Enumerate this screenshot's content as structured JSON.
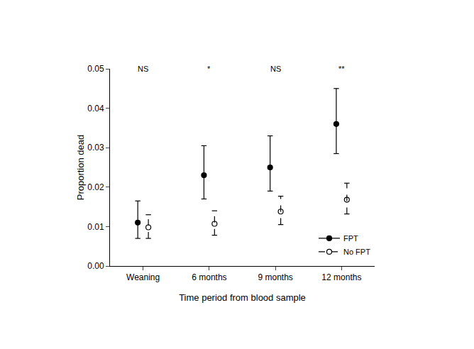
{
  "chart_data": {
    "type": "scatter",
    "x_label": "Time period from blood sample",
    "y_label": "Proportion dead",
    "categories": [
      "Weaning",
      "6 months",
      "9 months",
      "12 months"
    ],
    "annotations": [
      "NS",
      "*",
      "NS",
      "**"
    ],
    "series": [
      {
        "name": "FPT",
        "color": "#000000",
        "marker": "filled circle",
        "line_style": "solid",
        "values": [
          0.011,
          0.023,
          0.025,
          0.036
        ],
        "lower": [
          0.007,
          0.017,
          0.019,
          0.0285
        ],
        "upper": [
          0.0165,
          0.0305,
          0.033,
          0.045
        ]
      },
      {
        "name": "No FPT",
        "color": "#000000",
        "marker": "open circle",
        "line_style": "dashed",
        "values": [
          0.0098,
          0.0107,
          0.0138,
          0.0168
        ],
        "lower": [
          0.007,
          0.0078,
          0.0105,
          0.0132
        ],
        "upper": [
          0.013,
          0.014,
          0.0177,
          0.021
        ]
      }
    ],
    "ylim": [
      0,
      0.05
    ],
    "yticks": [
      {
        "value": 0,
        "label": "0.00"
      },
      0.01,
      0.02,
      0.03,
      0.04,
      0.05
    ],
    "grid": false,
    "legend": "lower right"
  }
}
